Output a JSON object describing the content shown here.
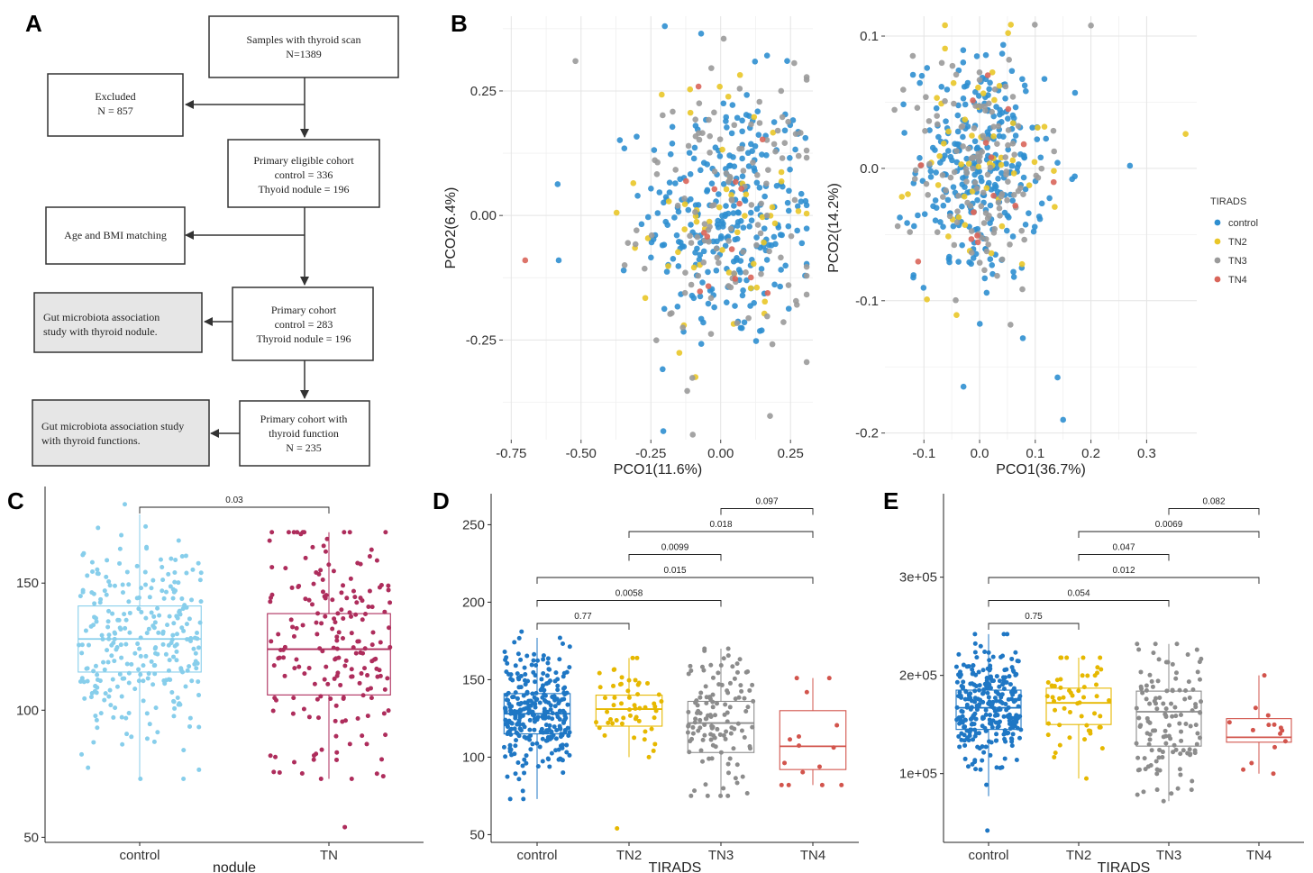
{
  "panels": {
    "A": "A",
    "B": "B",
    "C": "C",
    "D": "D",
    "E": "E"
  },
  "flowchart": {
    "boxes": [
      {
        "id": "samples",
        "lines": [
          "Samples with thyroid scan",
          "N=1389"
        ],
        "shaded": false
      },
      {
        "id": "excluded",
        "lines": [
          "Excluded",
          "N = 857"
        ],
        "shaded": false
      },
      {
        "id": "eligible",
        "lines": [
          "Primary eligible cohort",
          "control = 336",
          "Thyoid nodule = 196"
        ],
        "shaded": false
      },
      {
        "id": "matching",
        "lines": [
          "Age and BMI matching"
        ],
        "shaded": false
      },
      {
        "id": "primary",
        "lines": [
          "Primary cohort",
          "control = 283",
          "Thyroid nodule = 196"
        ],
        "shaded": false
      },
      {
        "id": "gut_nodule",
        "lines": [
          "Gut microbiota association",
          "study with thyroid nodule."
        ],
        "shaded": true
      },
      {
        "id": "func_cohort",
        "lines": [
          "Primary cohort with",
          "thyroid function",
          "N = 235"
        ],
        "shaded": false
      },
      {
        "id": "gut_func",
        "lines": [
          "Gut microbiota association study",
          "with thyroid functions."
        ],
        "shaded": true
      }
    ]
  },
  "colors": {
    "control": "#2f8fd0",
    "TN2": "#e9c628",
    "TN3": "#9a9a9a",
    "TN4": "#d9655a",
    "light_control": "#87ceeb",
    "TN": "#ae2d5c",
    "box_control": "#1f77c4",
    "box_TN2": "#e6b800",
    "box_TN3": "#8c8c8c",
    "box_TN4": "#d2544c"
  },
  "chart_data": [
    {
      "panel": "B-left",
      "type": "scatter",
      "xlabel": "PCO1(11.6%)",
      "ylabel": "PCO2(6.4%)",
      "xlim": [
        -0.78,
        0.33
      ],
      "ylim": [
        -0.45,
        0.4
      ],
      "xticks": [
        -0.75,
        -0.5,
        -0.25,
        0.0,
        0.25
      ],
      "xtick_labels": [
        "-0.75",
        "-0.50",
        "-0.25",
        "0.00",
        "0.25"
      ],
      "yticks": [
        -0.25,
        0.0,
        0.25
      ],
      "ytick_labels": [
        "-0.25",
        "0.00",
        "0.25"
      ],
      "groups": [
        "control",
        "TN2",
        "TN3",
        "TN4"
      ],
      "group_counts": [
        283,
        55,
        126,
        15
      ],
      "center": [
        0.03,
        0.0
      ],
      "spread": [
        0.16,
        0.14
      ],
      "highlighted_points": [
        {
          "group": "TN4",
          "x": -0.7,
          "y": -0.09
        },
        {
          "group": "TN3",
          "x": -0.52,
          "y": 0.31
        },
        {
          "group": "TN3",
          "x": -0.1,
          "y": -0.44
        },
        {
          "group": "control",
          "x": -0.2,
          "y": 0.38
        },
        {
          "group": "control",
          "x": -0.07,
          "y": 0.365
        },
        {
          "group": "control",
          "x": -0.58,
          "y": -0.09
        }
      ]
    },
    {
      "panel": "B-right",
      "type": "scatter",
      "xlabel": "PCO1(36.7%)",
      "ylabel": "PCO2(14.2%)",
      "xlim": [
        -0.17,
        0.39
      ],
      "ylim": [
        -0.205,
        0.115
      ],
      "xticks": [
        -0.1,
        0.0,
        0.1,
        0.2,
        0.3
      ],
      "xtick_labels": [
        "-0.1",
        "0.0",
        "0.1",
        "0.2",
        "0.3"
      ],
      "yticks": [
        -0.2,
        -0.1,
        0.0,
        0.1
      ],
      "ytick_labels": [
        "-0.2",
        "-0.1",
        "0.0",
        "0.1"
      ],
      "groups": [
        "control",
        "TN2",
        "TN3",
        "TN4"
      ],
      "group_counts": [
        283,
        55,
        126,
        15
      ],
      "center": [
        0.0,
        0.0
      ],
      "spread": [
        0.06,
        0.045
      ],
      "highlighted_points": [
        {
          "group": "TN3",
          "x": 0.2,
          "y": 0.108
        },
        {
          "group": "TN2",
          "x": 0.37,
          "y": 0.026
        },
        {
          "group": "control",
          "x": 0.15,
          "y": -0.19
        },
        {
          "group": "control",
          "x": 0.14,
          "y": -0.158
        },
        {
          "group": "control",
          "x": 0.27,
          "y": 0.002
        },
        {
          "group": "TN3",
          "x": -0.12,
          "y": 0.085
        }
      ],
      "legend": {
        "title": "TIRADS",
        "entries": [
          "control",
          "TN2",
          "TN3",
          "TN4"
        ],
        "position": "right"
      }
    },
    {
      "panel": "C",
      "type": "box",
      "xlabel": "nodule",
      "ylabel": "",
      "ylim": [
        48,
        188
      ],
      "yticks": [
        50,
        100,
        150
      ],
      "categories": [
        "control",
        "TN"
      ],
      "boxes": [
        {
          "q1": 115,
          "median": 128,
          "q3": 141,
          "wlo": 73,
          "whi": 177,
          "n": 283,
          "min_point": 73,
          "max_point": 181
        },
        {
          "q1": 106,
          "median": 124,
          "q3": 138,
          "wlo": 73,
          "whi": 170,
          "n": 196,
          "min_point": 54,
          "max_point": 170
        }
      ],
      "comparisons": [
        {
          "from": 0,
          "to": 1,
          "label": "0.03"
        }
      ]
    },
    {
      "panel": "D",
      "type": "box",
      "xlabel": "TIRADS",
      "ylabel": "",
      "ylim": [
        45,
        270
      ],
      "yticks": [
        50,
        100,
        150,
        200,
        250
      ],
      "categories": [
        "control",
        "TN2",
        "TN3",
        "TN4"
      ],
      "boxes": [
        {
          "q1": 115,
          "median": 128,
          "q3": 141,
          "wlo": 73,
          "whi": 177,
          "n": 283,
          "min_point": 73,
          "max_point": 181
        },
        {
          "q1": 120,
          "median": 131,
          "q3": 140,
          "wlo": 100,
          "whi": 164,
          "n": 55,
          "min_point": 54,
          "max_point": 164
        },
        {
          "q1": 103,
          "median": 122,
          "q3": 136,
          "wlo": 75,
          "whi": 170,
          "n": 126,
          "min_point": 75,
          "max_point": 170
        },
        {
          "q1": 92,
          "median": 107,
          "q3": 130,
          "wlo": 82,
          "whi": 151,
          "n": 15,
          "min_point": 82,
          "max_point": 151
        }
      ],
      "comparisons": [
        {
          "from": 0,
          "to": 1,
          "level": 0,
          "label": "0.77"
        },
        {
          "from": 0,
          "to": 2,
          "level": 1,
          "label": "0.0058"
        },
        {
          "from": 0,
          "to": 3,
          "level": 2,
          "label": "0.015"
        },
        {
          "from": 1,
          "to": 2,
          "level": 3,
          "label": "0.0099"
        },
        {
          "from": 1,
          "to": 3,
          "level": 4,
          "label": "0.018"
        },
        {
          "from": 2,
          "to": 3,
          "level": 5,
          "label": "0.097"
        }
      ]
    },
    {
      "panel": "E",
      "type": "box",
      "xlabel": "TIRADS",
      "ylabel": "",
      "ylim": [
        30000,
        385000
      ],
      "yticks": [
        100000,
        200000,
        300000
      ],
      "ytick_labels": [
        "1e+05",
        "2e+05",
        "3e+05"
      ],
      "categories": [
        "control",
        "TN2",
        "TN3",
        "TN4"
      ],
      "boxes": [
        {
          "q1": 145000,
          "median": 167000,
          "q3": 185000,
          "wlo": 77000,
          "whi": 242000,
          "n": 283,
          "min_point": 42000,
          "max_point": 242000
        },
        {
          "q1": 150000,
          "median": 172000,
          "q3": 187000,
          "wlo": 95000,
          "whi": 218000,
          "n": 55,
          "min_point": 95000,
          "max_point": 218000
        },
        {
          "q1": 128000,
          "median": 163000,
          "q3": 184000,
          "wlo": 72000,
          "whi": 232000,
          "n": 126,
          "min_point": 72000,
          "max_point": 232000
        },
        {
          "q1": 132000,
          "median": 137000,
          "q3": 156000,
          "wlo": 100000,
          "whi": 200000,
          "n": 15,
          "min_point": 100000,
          "max_point": 200000
        }
      ],
      "comparisons": [
        {
          "from": 0,
          "to": 1,
          "level": 0,
          "label": "0.75"
        },
        {
          "from": 0,
          "to": 2,
          "level": 1,
          "label": "0.054"
        },
        {
          "from": 0,
          "to": 3,
          "level": 2,
          "label": "0.012"
        },
        {
          "from": 1,
          "to": 2,
          "level": 3,
          "label": "0.047"
        },
        {
          "from": 1,
          "to": 3,
          "level": 4,
          "label": "0.0069"
        },
        {
          "from": 2,
          "to": 3,
          "level": 5,
          "label": "0.082"
        }
      ]
    }
  ]
}
